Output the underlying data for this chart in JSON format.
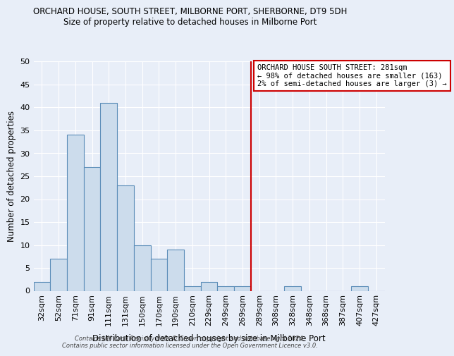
{
  "title": "ORCHARD HOUSE, SOUTH STREET, MILBORNE PORT, SHERBORNE, DT9 5DH",
  "subtitle": "Size of property relative to detached houses in Milborne Port",
  "xlabel": "Distribution of detached houses by size in Milborne Port",
  "ylabel": "Number of detached properties",
  "categories": [
    "32sqm",
    "52sqm",
    "71sqm",
    "91sqm",
    "111sqm",
    "131sqm",
    "150sqm",
    "170sqm",
    "190sqm",
    "210sqm",
    "229sqm",
    "249sqm",
    "269sqm",
    "289sqm",
    "308sqm",
    "328sqm",
    "348sqm",
    "368sqm",
    "387sqm",
    "407sqm",
    "427sqm"
  ],
  "values": [
    2,
    7,
    34,
    27,
    41,
    23,
    10,
    7,
    9,
    1,
    2,
    1,
    1,
    0,
    0,
    1,
    0,
    0,
    0,
    1,
    0
  ],
  "bar_color": "#ccdcec",
  "bar_edge_color": "#5b8db8",
  "vline_color": "#cc0000",
  "annotation_text": "ORCHARD HOUSE SOUTH STREET: 281sqm\n← 98% of detached houses are smaller (163)\n2% of semi-detached houses are larger (3) →",
  "annotation_box_color": "#ffffff",
  "annotation_box_edge": "#cc0000",
  "ylim": [
    0,
    50
  ],
  "yticks": [
    0,
    5,
    10,
    15,
    20,
    25,
    30,
    35,
    40,
    45,
    50
  ],
  "background_color": "#e8eef8",
  "grid_color": "#ffffff",
  "footer": "Contains HM Land Registry data © Crown copyright and database right 2024.\nContains public sector information licensed under the Open Government Licence v3.0."
}
